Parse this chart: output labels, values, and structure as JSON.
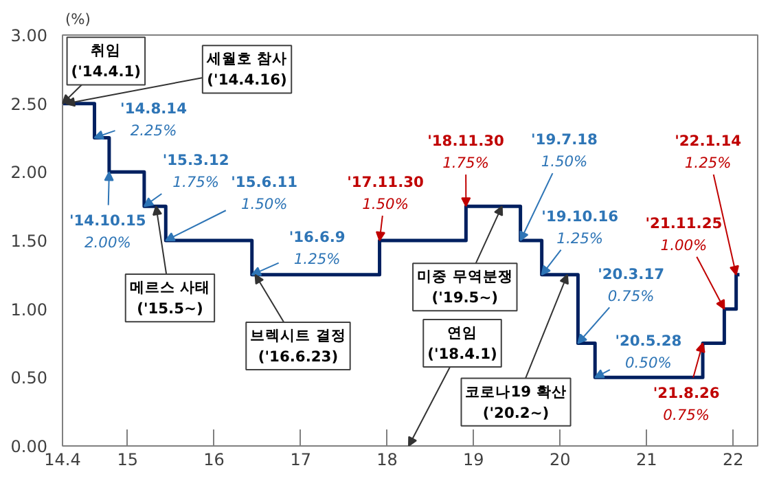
{
  "chart_data": {
    "type": "step",
    "ylabel": "(%)",
    "x": [
      "2014-04-01",
      "2014-08-14",
      "2014-10-15",
      "2015-03-12",
      "2015-06-11",
      "2016-06-09",
      "2017-11-30",
      "2018-11-30",
      "2019-07-18",
      "2019-10-16",
      "2020-03-17",
      "2020-05-28",
      "2021-08-26",
      "2021-11-25",
      "2022-01-14",
      "2022-01-28"
    ],
    "series": [
      {
        "color": "#002060",
        "values": [
          2.5,
          2.25,
          2.0,
          1.75,
          1.5,
          1.25,
          1.5,
          1.75,
          1.5,
          1.25,
          0.75,
          0.5,
          0.75,
          1.0,
          1.25,
          1.25
        ]
      }
    ],
    "xlim": [
      "2014-04-01",
      "2022-04-15"
    ],
    "ylim": [
      0,
      3
    ],
    "xticks": [
      {
        "value": "2014-04-01",
        "label": "14.4"
      },
      {
        "value": "2015-01-01",
        "label": "15"
      },
      {
        "value": "2016-01-01",
        "label": "16"
      },
      {
        "value": "2017-01-01",
        "label": "17"
      },
      {
        "value": "2018-01-01",
        "label": "18"
      },
      {
        "value": "2019-01-01",
        "label": "19"
      },
      {
        "value": "2020-01-01",
        "label": "20"
      },
      {
        "value": "2021-01-01",
        "label": "21"
      },
      {
        "value": "2022-01-01",
        "label": "22"
      }
    ],
    "yticks": [
      {
        "value": 0,
        "label": "0.00"
      },
      {
        "value": 0.5,
        "label": "0.50"
      },
      {
        "value": 1,
        "label": "1.00"
      },
      {
        "value": 1.5,
        "label": "1.50"
      },
      {
        "value": 2,
        "label": "2.00"
      },
      {
        "value": 2.5,
        "label": "2.50"
      },
      {
        "value": 3,
        "label": "3.00"
      }
    ],
    "grid": false,
    "annotations": [
      {
        "text": "'14.8.14\n2.25%",
        "x": "2014-08-14",
        "y": 2.25
      },
      {
        "text": "'14.10.15\n2.00%",
        "x": "2014-10-15",
        "y": 2.0
      },
      {
        "text": "'15.3.12\n1.75%",
        "x": "2015-03-12",
        "y": 1.75
      },
      {
        "text": "'15.6.11\n1.50%",
        "x": "2015-06-11",
        "y": 1.5
      },
      {
        "text": "'16.6.9\n1.25%",
        "x": "2016-06-09",
        "y": 1.25
      },
      {
        "text": "'17.11.30\n1.50%",
        "x": "2017-11-30",
        "y": 1.5
      },
      {
        "text": "'18.11.30\n1.75%",
        "x": "2018-11-30",
        "y": 1.75
      },
      {
        "text": "'19.7.18\n1.50%",
        "x": "2019-07-18",
        "y": 1.5
      },
      {
        "text": "'19.10.16\n1.25%",
        "x": "2019-10-16",
        "y": 1.25
      },
      {
        "text": "'20.3.17\n0.75%",
        "x": "2020-03-17",
        "y": 0.75
      },
      {
        "text": "'20.5.28\n0.50%",
        "x": "2020-05-28",
        "y": 0.5
      },
      {
        "text": "'21.8.26\n0.75%",
        "x": "2021-08-26",
        "y": 0.75
      },
      {
        "text": "'21.11.25\n1.00%",
        "x": "2021-11-25",
        "y": 1.0
      },
      {
        "text": "'22.1.14\n1.25%",
        "x": "2022-01-14",
        "y": 1.25
      },
      {
        "text": "취임\n('14.4.1)",
        "x": "2014-04-01",
        "y": 2.5
      },
      {
        "text": "세월호 참사\n('14.4.16)",
        "x": "2014-04-16",
        "y": 2.5
      },
      {
        "text": "메르스 사태\n('15.5~)",
        "x": "2015-05",
        "y": 1.75
      },
      {
        "text": "브렉시트 결정\n('16.6.23)",
        "x": "2016-06-23",
        "y": 1.25
      },
      {
        "text": "미중 무역분쟁\n('19.5~)",
        "x": "2019-05",
        "y": 1.75
      },
      "연임\n('18.4.1)",
      {
        "text": "코로나19 확산\n('20.2~)",
        "x": "2020-02",
        "y": 1.25
      }
    ]
  }
}
